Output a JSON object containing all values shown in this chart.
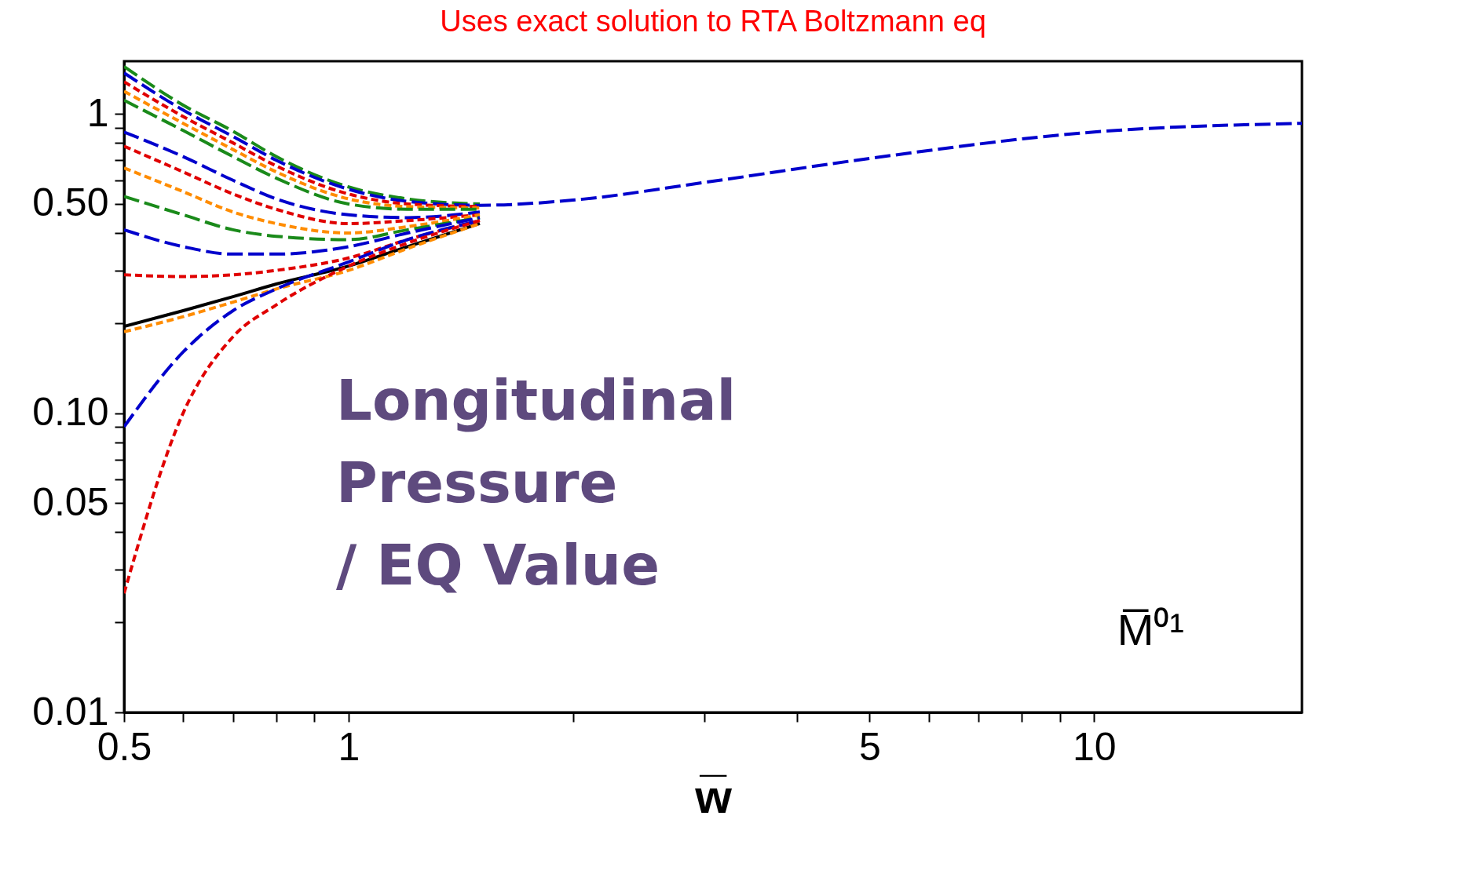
{
  "chart_data": {
    "type": "line",
    "title": "Uses exact solution to RTA Boltzmann eq",
    "xlabel": "w̅",
    "annotations": [
      "Longitudinal\nPressure\n/ EQ Value",
      "M̅⁰¹"
    ],
    "log": "xy",
    "grid": false,
    "legend": false,
    "x": [
      0.5,
      0.6,
      0.7,
      0.8,
      1,
      1.2,
      1.5,
      2,
      3,
      5,
      10,
      19
    ],
    "xlim": [
      0.5,
      19
    ],
    "ylim": [
      0.01,
      1.5
    ],
    "xticks": [
      0.5,
      {
        "value": 0.6,
        "label": null
      },
      {
        "value": 0.7,
        "label": null
      },
      {
        "value": 0.8,
        "label": null
      },
      {
        "value": 0.9,
        "label": null
      },
      1,
      {
        "value": 2,
        "label": null
      },
      {
        "value": 3,
        "label": null
      },
      {
        "value": 4,
        "label": null
      },
      5,
      {
        "value": 6,
        "label": null
      },
      {
        "value": 7,
        "label": null
      },
      {
        "value": 8,
        "label": null
      },
      {
        "value": 9,
        "label": null
      },
      10
    ],
    "yticks": [
      0.01,
      {
        "value": 0.02,
        "label": null
      },
      {
        "value": 0.03,
        "label": null
      },
      {
        "value": 0.04,
        "label": null
      },
      0.05,
      {
        "value": 0.06,
        "label": null
      },
      {
        "value": 0.07,
        "label": null
      },
      {
        "value": 0.08,
        "label": null
      },
      {
        "value": 0.09,
        "label": null
      },
      {
        "value": 0.1,
        "label": "0.10"
      },
      {
        "value": 0.2,
        "label": null
      },
      {
        "value": 0.3,
        "label": null
      },
      {
        "value": 0.4,
        "label": null
      },
      {
        "value": 0.5,
        "label": "0.50"
      },
      {
        "value": 0.6,
        "label": null
      },
      {
        "value": 0.7,
        "label": null
      },
      {
        "value": 0.8,
        "label": null
      },
      {
        "value": 0.9,
        "label": null
      },
      1
    ],
    "series": [
      {
        "color": "#1a8a1a",
        "line_style": "dashed",
        "values": [
          1.44,
          1.07,
          0.875,
          0.72,
          0.57,
          0.52,
          0.5,
          null,
          null,
          null,
          null,
          null
        ]
      },
      {
        "color": "#0000cc",
        "line_style": "dashed",
        "values": [
          1.37,
          1.03,
          0.84,
          0.7,
          0.56,
          0.51,
          0.495,
          0.515,
          0.59,
          0.71,
          0.87,
          0.93
        ]
      },
      {
        "color": "#e00000",
        "line_style": "dotted",
        "values": [
          1.28,
          0.98,
          0.8,
          0.67,
          0.54,
          0.5,
          0.49,
          null,
          null,
          null,
          null,
          null
        ]
      },
      {
        "color": "#ff8c00",
        "line_style": "dotted",
        "values": [
          1.19,
          0.93,
          0.76,
          0.64,
          0.52,
          0.49,
          0.485,
          null,
          null,
          null,
          null,
          null
        ]
      },
      {
        "color": "#1a8a1a",
        "line_style": "dashed",
        "values": [
          1.11,
          0.88,
          0.72,
          0.61,
          0.5,
          0.48,
          0.48,
          null,
          null,
          null,
          null,
          null
        ]
      },
      {
        "color": "#0000cc",
        "line_style": "dashed",
        "values": [
          0.87,
          0.72,
          0.6,
          0.52,
          0.46,
          0.45,
          0.47,
          null,
          null,
          null,
          null,
          null
        ]
      },
      {
        "color": "#e00000",
        "line_style": "dotted",
        "values": [
          0.78,
          0.64,
          0.54,
          0.48,
          0.43,
          0.44,
          0.46,
          null,
          null,
          null,
          null,
          null
        ]
      },
      {
        "color": "#ff8c00",
        "line_style": "dotted",
        "values": [
          0.66,
          0.55,
          0.47,
          0.43,
          0.4,
          0.42,
          0.46,
          null,
          null,
          null,
          null,
          null
        ]
      },
      {
        "color": "#1a8a1a",
        "line_style": "dashed",
        "values": [
          0.53,
          0.46,
          0.41,
          0.39,
          0.38,
          0.41,
          0.45,
          null,
          null,
          null,
          null,
          null
        ]
      },
      {
        "color": "#0000cc",
        "line_style": "dashed",
        "values": [
          0.41,
          0.36,
          0.34,
          0.34,
          0.36,
          0.4,
          0.45,
          null,
          null,
          null,
          null,
          null
        ]
      },
      {
        "color": "#e00000",
        "line_style": "dotted",
        "values": [
          0.29,
          0.286,
          0.29,
          0.3,
          0.33,
          0.38,
          0.44,
          null,
          null,
          null,
          null,
          null
        ]
      },
      {
        "color": "#000000",
        "line_style": "solid",
        "values": [
          0.195,
          0.22,
          0.245,
          0.27,
          0.31,
          0.36,
          0.43,
          null,
          null,
          null,
          null,
          null
        ]
      },
      {
        "color": "#ff8c00",
        "line_style": "dotted",
        "values": [
          0.187,
          0.21,
          0.235,
          0.26,
          0.3,
          0.355,
          0.43,
          null,
          null,
          null,
          null,
          null
        ]
      },
      {
        "color": "#0000cc",
        "line_style": "dashed",
        "values": [
          0.09,
          0.16,
          0.22,
          0.26,
          0.32,
          0.38,
          0.44,
          null,
          null,
          null,
          null,
          null
        ]
      },
      {
        "color": "#e00000",
        "line_style": "dotted",
        "values": [
          0.025,
          0.1,
          0.18,
          0.23,
          0.31,
          0.37,
          0.44,
          null,
          null,
          null,
          null,
          null
        ]
      }
    ]
  }
}
